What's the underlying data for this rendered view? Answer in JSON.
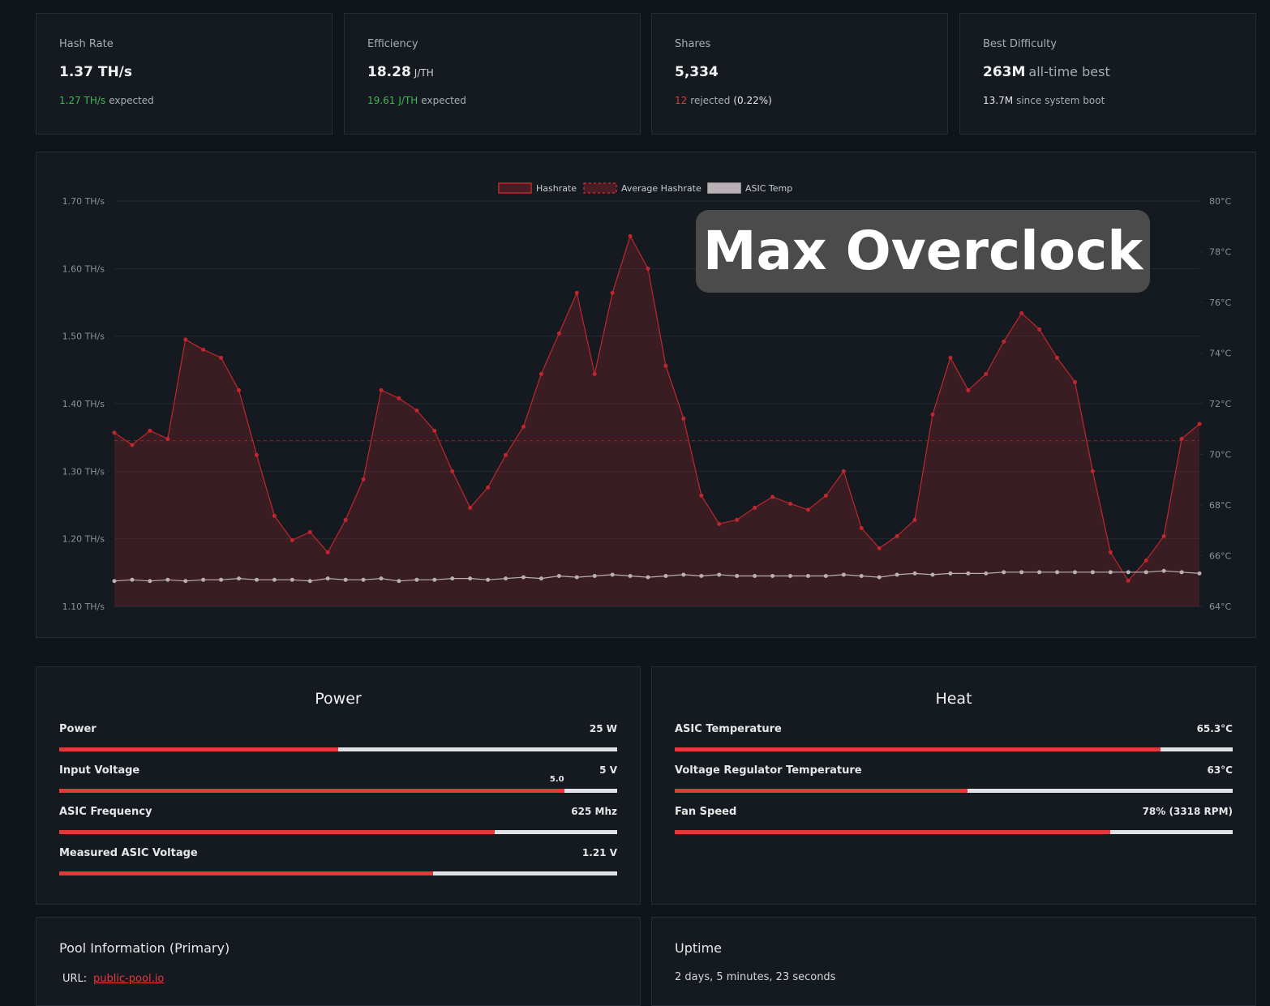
{
  "stats": [
    {
      "label": "Hash Rate",
      "value": "1.37 TH/s",
      "sub": [
        {
          "text": "1.27 TH/s",
          "color": "#3fb950"
        },
        {
          "text": "expected"
        }
      ]
    },
    {
      "label": "Efficiency",
      "value": "18.28",
      "unit": "J/TH",
      "sub": [
        {
          "text": "19.61",
          "color": "#3fb950"
        },
        {
          "text": "J/TH",
          "color": "#3fb950"
        },
        {
          "text": "expected"
        }
      ]
    },
    {
      "label": "Shares",
      "value": "5,334",
      "sub": [
        {
          "text": "12",
          "color": "#e5383b"
        },
        {
          "text": "rejected"
        },
        {
          "text": "(0.22%)",
          "color": "#e6e6e6"
        }
      ]
    },
    {
      "label": "Best Difficulty",
      "value": "263M",
      "unit": "all-time best",
      "sub": [
        {
          "text": "13.7M",
          "color": "#e6e6e6"
        },
        {
          "text": "since system boot"
        }
      ]
    }
  ],
  "chart_data": {
    "type": "line",
    "ylim": [
      1.1,
      1.7
    ],
    "yticks": [
      {
        "value": 1.1,
        "label": "1.10 TH/s"
      },
      {
        "value": 1.2,
        "label": "1.20 TH/s"
      },
      {
        "value": 1.3,
        "label": "1.30 TH/s"
      },
      {
        "value": 1.4,
        "label": "1.40 TH/s"
      },
      {
        "value": 1.5,
        "label": "1.50 TH/s"
      },
      {
        "value": 1.6,
        "label": "1.60 TH/s"
      },
      {
        "value": 1.7,
        "label": "1.70 TH/s"
      }
    ],
    "y2lim": [
      64,
      80
    ],
    "y2ticks": [
      {
        "value": 64,
        "label": "64°C"
      },
      {
        "value": 66,
        "label": "66°C"
      },
      {
        "value": 68,
        "label": "68°C"
      },
      {
        "value": 70,
        "label": "70°C"
      },
      {
        "value": 72,
        "label": "72°C"
      },
      {
        "value": 74,
        "label": "74°C"
      },
      {
        "value": 76,
        "label": "76°C"
      },
      {
        "value": 78,
        "label": "78°C"
      },
      {
        "value": 80,
        "label": "80°C"
      }
    ],
    "grid": true,
    "legend": "top",
    "series": [
      {
        "name": "Hashrate",
        "color": "#c0262d",
        "values": [
          1.357,
          1.339,
          1.36,
          1.348,
          1.495,
          1.48,
          1.468,
          1.42,
          1.324,
          1.234,
          1.198,
          1.21,
          1.18,
          1.228,
          1.288,
          1.42,
          1.408,
          1.39,
          1.36,
          1.3,
          1.246,
          1.276,
          1.324,
          1.366,
          1.444,
          1.504,
          1.564,
          1.444,
          1.564,
          1.648,
          1.6,
          1.456,
          1.378,
          1.264,
          1.222,
          1.228,
          1.246,
          1.262,
          1.252,
          1.243,
          1.264,
          1.3,
          1.216,
          1.186,
          1.204,
          1.228,
          1.384,
          1.468,
          1.42,
          1.444,
          1.492,
          1.534,
          1.51,
          1.468,
          1.432,
          1.3,
          1.18,
          1.138,
          1.168,
          1.204,
          1.348,
          1.37
        ]
      },
      {
        "name": "Average Hashrate",
        "color": "#c0262d",
        "dash": true,
        "values": [
          1.345,
          1.345,
          1.345,
          1.345,
          1.345,
          1.345,
          1.345,
          1.345,
          1.345,
          1.345,
          1.345,
          1.345,
          1.345,
          1.345,
          1.345,
          1.345,
          1.345,
          1.345,
          1.345,
          1.345,
          1.345,
          1.345,
          1.345,
          1.345,
          1.345,
          1.345,
          1.345,
          1.345,
          1.345,
          1.345,
          1.345,
          1.345,
          1.345,
          1.345,
          1.345,
          1.345,
          1.345,
          1.345,
          1.345,
          1.345,
          1.345,
          1.345,
          1.345,
          1.345,
          1.345,
          1.345,
          1.345,
          1.345,
          1.345,
          1.345,
          1.345,
          1.345,
          1.345,
          1.345,
          1.345,
          1.345,
          1.345,
          1.345,
          1.345,
          1.345,
          1.345,
          1.345
        ]
      },
      {
        "name": "ASIC Temp",
        "color": "#b8b0b4",
        "axis": "y2",
        "values": [
          65.0,
          65.05,
          65.0,
          65.05,
          65.0,
          65.05,
          65.05,
          65.1,
          65.05,
          65.05,
          65.05,
          65.0,
          65.1,
          65.05,
          65.05,
          65.1,
          65.0,
          65.05,
          65.05,
          65.1,
          65.1,
          65.05,
          65.1,
          65.15,
          65.1,
          65.2,
          65.15,
          65.2,
          65.25,
          65.2,
          65.15,
          65.2,
          65.25,
          65.2,
          65.25,
          65.2,
          65.2,
          65.2,
          65.2,
          65.2,
          65.2,
          65.25,
          65.2,
          65.15,
          65.25,
          65.3,
          65.25,
          65.3,
          65.3,
          65.3,
          65.35,
          65.35,
          65.35,
          65.35,
          65.35,
          65.35,
          65.35,
          65.35,
          65.35,
          65.4,
          65.35,
          65.3
        ]
      }
    ]
  },
  "overlay": "Max Overclock",
  "panels": [
    {
      "title": "Power",
      "rows": [
        {
          "label": "Power",
          "value": "25 W",
          "percent": 50
        },
        {
          "label": "Input Voltage",
          "value": "5 V",
          "percent": 90.5,
          "marker_label": "5.0"
        },
        {
          "label": "ASIC Frequency",
          "value": "625 Mhz",
          "percent": 78
        },
        {
          "label": "Measured ASIC Voltage",
          "value": "1.21 V",
          "percent": 67
        }
      ]
    },
    {
      "title": "Heat",
      "rows": [
        {
          "label": "ASIC Temperature",
          "value": "65.3°C",
          "percent": 87
        },
        {
          "label": "Voltage Regulator Temperature",
          "value": "63°C",
          "percent": 52.5
        },
        {
          "label": "Fan Speed",
          "value": "78% (3318 RPM)",
          "percent": 78
        }
      ]
    }
  ],
  "pool": {
    "title": "Pool Information (Primary)",
    "url_label": "URL:",
    "url": "public-pool.io"
  },
  "uptime": {
    "title": "Uptime",
    "value": "2 days, 5 minutes, 23 seconds"
  }
}
